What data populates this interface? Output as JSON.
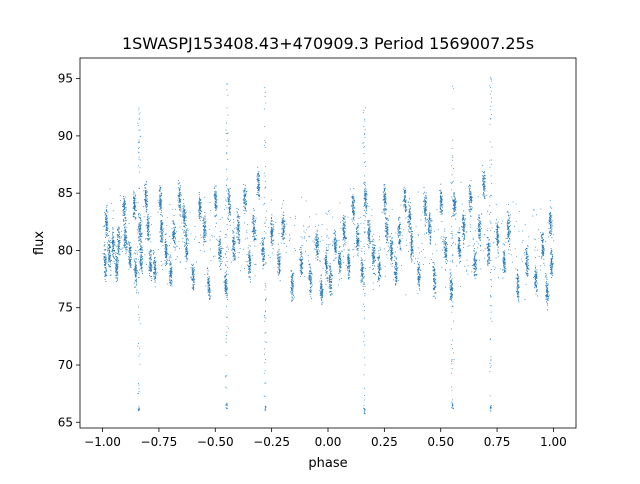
{
  "colors": {
    "series": "#1f77b4",
    "axis": "#000000",
    "background": "#ffffff"
  },
  "chart_data": {
    "type": "scatter",
    "title": "1SWASPJ153408.43+470909.3 Period 1569007.25s",
    "xlabel": "phase",
    "ylabel": "flux",
    "xlim": [
      -1.1,
      1.1
    ],
    "ylim": [
      64.5,
      96.8
    ],
    "xticks": [
      -1.0,
      -0.75,
      -0.5,
      -0.25,
      0.0,
      0.25,
      0.5,
      0.75,
      1.0
    ],
    "xtick_labels": [
      "−1.00",
      "−0.75",
      "−0.50",
      "−0.25",
      "0.00",
      "0.25",
      "0.50",
      "0.75",
      "1.00"
    ],
    "yticks": [
      65,
      70,
      75,
      80,
      85,
      90,
      95
    ],
    "ytick_labels": [
      "65",
      "70",
      "75",
      "80",
      "85",
      "90",
      "95"
    ],
    "grid": false,
    "legend": "none",
    "clusters": [
      {
        "x": -0.99,
        "y": 78.8
      },
      {
        "x": -0.985,
        "y": 82.5
      },
      {
        "x": -0.97,
        "y": 79.5
      },
      {
        "x": -0.955,
        "y": 80.5
      },
      {
        "x": -0.94,
        "y": 78.5
      },
      {
        "x": -0.93,
        "y": 80.8
      },
      {
        "x": -0.905,
        "y": 83.6
      },
      {
        "x": -0.9,
        "y": 81.0
      },
      {
        "x": -0.88,
        "y": 79.5
      },
      {
        "x": -0.86,
        "y": 84.0
      },
      {
        "x": -0.855,
        "y": 78.2
      },
      {
        "x": -0.835,
        "y": 81.8
      },
      {
        "x": -0.83,
        "y": 79.5
      },
      {
        "x": -0.81,
        "y": 84.6
      },
      {
        "x": -0.8,
        "y": 82.0
      },
      {
        "x": -0.79,
        "y": 79.0
      },
      {
        "x": -0.77,
        "y": 78.5
      },
      {
        "x": -0.745,
        "y": 84.5
      },
      {
        "x": -0.74,
        "y": 81.8
      },
      {
        "x": -0.72,
        "y": 80.0
      },
      {
        "x": -0.7,
        "y": 78.2
      },
      {
        "x": -0.685,
        "y": 81.5
      },
      {
        "x": -0.66,
        "y": 84.5
      },
      {
        "x": -0.64,
        "y": 83.0
      },
      {
        "x": -0.63,
        "y": 80.5
      },
      {
        "x": -0.6,
        "y": 77.8
      },
      {
        "x": -0.57,
        "y": 83.8
      },
      {
        "x": -0.55,
        "y": 82.0
      },
      {
        "x": -0.53,
        "y": 77.0
      },
      {
        "x": -0.5,
        "y": 84.3
      },
      {
        "x": -0.48,
        "y": 80.0
      },
      {
        "x": -0.455,
        "y": 77.0
      },
      {
        "x": -0.44,
        "y": 84.0
      },
      {
        "x": -0.42,
        "y": 80.5
      },
      {
        "x": -0.4,
        "y": 82.0
      },
      {
        "x": -0.37,
        "y": 84.5
      },
      {
        "x": -0.35,
        "y": 79.0
      },
      {
        "x": -0.33,
        "y": 82.0
      },
      {
        "x": -0.31,
        "y": 85.8
      },
      {
        "x": -0.29,
        "y": 80.0
      },
      {
        "x": -0.25,
        "y": 81.5
      },
      {
        "x": -0.22,
        "y": 79.0
      },
      {
        "x": -0.2,
        "y": 82.0
      },
      {
        "x": -0.16,
        "y": 77.0
      },
      {
        "x": -0.12,
        "y": 79.0
      },
      {
        "x": -0.08,
        "y": 77.5
      },
      {
        "x": -0.05,
        "y": 80.5
      },
      {
        "x": -0.03,
        "y": 76.5
      },
      {
        "x": -0.01,
        "y": 79.0
      },
      {
        "x": 0.01,
        "y": 77.5
      },
      {
        "x": 0.03,
        "y": 80.5
      },
      {
        "x": 0.05,
        "y": 79.0
      },
      {
        "x": 0.07,
        "y": 81.8
      },
      {
        "x": 0.09,
        "y": 78.8
      },
      {
        "x": 0.11,
        "y": 83.8
      },
      {
        "x": 0.13,
        "y": 81.0
      },
      {
        "x": 0.15,
        "y": 78.2
      },
      {
        "x": 0.165,
        "y": 84.6
      },
      {
        "x": 0.18,
        "y": 81.5
      },
      {
        "x": 0.2,
        "y": 79.5
      },
      {
        "x": 0.225,
        "y": 78.5
      },
      {
        "x": 0.25,
        "y": 84.5
      },
      {
        "x": 0.26,
        "y": 81.8
      },
      {
        "x": 0.28,
        "y": 80.0
      },
      {
        "x": 0.3,
        "y": 78.2
      },
      {
        "x": 0.315,
        "y": 81.5
      },
      {
        "x": 0.34,
        "y": 84.5
      },
      {
        "x": 0.36,
        "y": 83.0
      },
      {
        "x": 0.37,
        "y": 80.5
      },
      {
        "x": 0.4,
        "y": 77.8
      },
      {
        "x": 0.43,
        "y": 83.8
      },
      {
        "x": 0.45,
        "y": 82.0
      },
      {
        "x": 0.47,
        "y": 77.5
      },
      {
        "x": 0.5,
        "y": 84.3
      },
      {
        "x": 0.52,
        "y": 80.0
      },
      {
        "x": 0.545,
        "y": 76.8
      },
      {
        "x": 0.56,
        "y": 84.0
      },
      {
        "x": 0.58,
        "y": 80.5
      },
      {
        "x": 0.6,
        "y": 82.0
      },
      {
        "x": 0.63,
        "y": 84.5
      },
      {
        "x": 0.65,
        "y": 79.0
      },
      {
        "x": 0.67,
        "y": 82.0
      },
      {
        "x": 0.69,
        "y": 85.8
      },
      {
        "x": 0.71,
        "y": 80.0
      },
      {
        "x": 0.75,
        "y": 81.5
      },
      {
        "x": 0.78,
        "y": 79.0
      },
      {
        "x": 0.8,
        "y": 82.0
      },
      {
        "x": 0.84,
        "y": 77.0
      },
      {
        "x": 0.88,
        "y": 79.0
      },
      {
        "x": 0.92,
        "y": 77.5
      },
      {
        "x": 0.95,
        "y": 80.5
      },
      {
        "x": 0.97,
        "y": 76.5
      },
      {
        "x": 0.99,
        "y": 79.0
      },
      {
        "x": 0.985,
        "y": 82.5
      }
    ],
    "outlier_columns": [
      {
        "x": -0.84,
        "y_min": 65.8,
        "y_max": 92.5
      },
      {
        "x": -0.45,
        "y_min": 66.2,
        "y_max": 95.0
      },
      {
        "x": -0.28,
        "y_min": 66.0,
        "y_max": 95.5
      },
      {
        "x": 0.16,
        "y_min": 65.8,
        "y_max": 92.5
      },
      {
        "x": 0.55,
        "y_min": 66.2,
        "y_max": 95.0
      },
      {
        "x": 0.72,
        "y_min": 66.0,
        "y_max": 95.5
      }
    ]
  }
}
